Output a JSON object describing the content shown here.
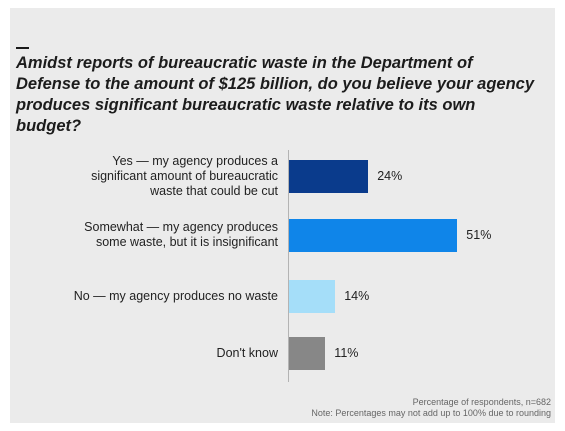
{
  "chart_data": {
    "type": "bar",
    "orientation": "horizontal",
    "title": "Amidst reports of bureaucratic waste in the Department of Defense to the amount of $125 billion, do you believe your agency produces significant bureaucratic waste relative to its own budget?",
    "categories": [
      [
        "Yes — my agency produces a",
        "significant amount of bureaucratic",
        "waste that could be cut"
      ],
      [
        "Somewhat — my agency produces",
        "some waste, but it is insignificant"
      ],
      [
        "No — my agency produces no waste"
      ],
      [
        "Don't know"
      ]
    ],
    "values": [
      24,
      51,
      14,
      11
    ],
    "value_labels": [
      "24%",
      "51%",
      "14%",
      "11%"
    ],
    "colors": [
      "#0a3b8c",
      "#0f85e9",
      "#a5def9",
      "#878787"
    ],
    "xlim": [
      0,
      60
    ],
    "unit": "%",
    "grid": false,
    "notes": [
      "Percentage of respondents, n=682",
      "Note: Percentages may not add up to 100% due to rounding"
    ]
  }
}
